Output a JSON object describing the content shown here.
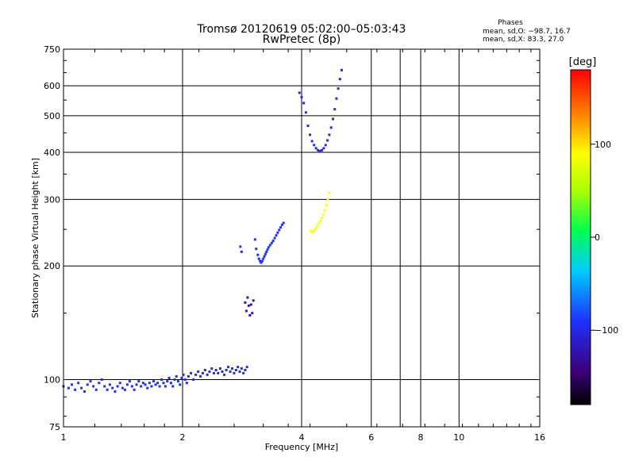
{
  "header": {
    "title_line1": "Tromsø 20120619 05:02:00–05:03:43",
    "title_line2": "RwPretec (8p)",
    "stats_heading": "Phases",
    "stats_o": "mean, sd,O: −98.7, 16.7",
    "stats_x": "mean, sd,X:  83.3, 27.0"
  },
  "colorbar": {
    "label": "[deg]",
    "ticks": [
      {
        "value": 100,
        "label": "100"
      },
      {
        "value": 0,
        "label": "0"
      },
      {
        "value": -100,
        "label": "−100"
      }
    ],
    "range": [
      -180,
      180
    ]
  },
  "chart_data": {
    "type": "scatter",
    "title": "Tromsø 20120619 05:02:00–05:03:43",
    "subtitle": "RwPretec (8p)",
    "xlabel": "Frequency [MHz]",
    "ylabel": "Stationary phase Virtual Height [km]",
    "xscale": "log",
    "yscale": "log",
    "xlim": [
      1,
      16
    ],
    "ylim": [
      75,
      750
    ],
    "x_ticks": [
      1,
      2,
      4,
      8,
      16
    ],
    "x_tick_labels": [
      "1",
      "2",
      "4",
      "8",
      "16"
    ],
    "x_minor_ticks": [
      6,
      10
    ],
    "x_minor_labels": [
      "6",
      "10"
    ],
    "x_extra_gridlines": [
      7.1
    ],
    "y_ticks": [
      75,
      100,
      200,
      300,
      400,
      500,
      600,
      750
    ],
    "y_tick_labels": [
      "75",
      "100",
      "200",
      "300",
      "400",
      "500",
      "600",
      "750"
    ],
    "grid": true,
    "color_scale": "phase in degrees, rainbow (black→purple→blue→cyan→green→yellow→orange→red)",
    "series": [
      {
        "phase_deg": -95,
        "points": [
          [
            1.0,
            96
          ],
          [
            1.03,
            95
          ],
          [
            1.05,
            97
          ],
          [
            1.07,
            94
          ],
          [
            1.09,
            98
          ],
          [
            1.11,
            95
          ],
          [
            1.13,
            93
          ],
          [
            1.15,
            97
          ],
          [
            1.17,
            99
          ],
          [
            1.19,
            96
          ],
          [
            1.21,
            94
          ],
          [
            1.23,
            98
          ],
          [
            1.25,
            100
          ],
          [
            1.27,
            96
          ],
          [
            1.29,
            94
          ],
          [
            1.31,
            97
          ],
          [
            1.33,
            95
          ],
          [
            1.35,
            93
          ],
          [
            1.37,
            96
          ],
          [
            1.39,
            98
          ],
          [
            1.41,
            95
          ],
          [
            1.43,
            94
          ],
          [
            1.45,
            97
          ],
          [
            1.47,
            99
          ],
          [
            1.49,
            96
          ],
          [
            1.51,
            94
          ],
          [
            1.53,
            97
          ],
          [
            1.55,
            99
          ],
          [
            1.57,
            96
          ],
          [
            1.59,
            98
          ],
          [
            1.61,
            97
          ],
          [
            1.63,
            95
          ],
          [
            1.65,
            98
          ],
          [
            1.67,
            96
          ],
          [
            1.69,
            99
          ],
          [
            1.71,
            97
          ],
          [
            1.73,
            98
          ],
          [
            1.75,
            96
          ],
          [
            1.77,
            100
          ],
          [
            1.79,
            98
          ],
          [
            1.81,
            96
          ],
          [
            1.83,
            99
          ],
          [
            1.85,
            101
          ],
          [
            1.87,
            98
          ],
          [
            1.89,
            96
          ],
          [
            1.91,
            100
          ],
          [
            1.93,
            102
          ],
          [
            1.95,
            99
          ],
          [
            1.97,
            97
          ],
          [
            1.99,
            101
          ],
          [
            2.01,
            103
          ],
          [
            2.03,
            100
          ],
          [
            2.05,
            98
          ],
          [
            2.07,
            102
          ],
          [
            2.1,
            104
          ],
          [
            2.13,
            100
          ],
          [
            2.16,
            103
          ],
          [
            2.19,
            105
          ],
          [
            2.22,
            102
          ],
          [
            2.25,
            104
          ],
          [
            2.28,
            106
          ],
          [
            2.31,
            103
          ],
          [
            2.34,
            105
          ],
          [
            2.37,
            107
          ],
          [
            2.4,
            104
          ],
          [
            2.43,
            106
          ],
          [
            2.46,
            104
          ],
          [
            2.49,
            107
          ],
          [
            2.52,
            105
          ],
          [
            2.55,
            103
          ],
          [
            2.58,
            106
          ],
          [
            2.61,
            108
          ],
          [
            2.64,
            105
          ],
          [
            2.67,
            107
          ],
          [
            2.7,
            104
          ],
          [
            2.73,
            106
          ],
          [
            2.76,
            108
          ],
          [
            2.79,
            105
          ],
          [
            2.82,
            107
          ],
          [
            2.85,
            104
          ],
          [
            2.88,
            106
          ],
          [
            2.91,
            108
          ]
        ]
      },
      {
        "phase_deg": -90,
        "points": [
          [
            2.8,
            225
          ],
          [
            2.82,
            218
          ],
          [
            3.05,
            235
          ],
          [
            3.07,
            222
          ],
          [
            3.1,
            214
          ],
          [
            3.12,
            209
          ],
          [
            3.14,
            206
          ],
          [
            3.16,
            204
          ],
          [
            3.18,
            206
          ],
          [
            3.2,
            209
          ],
          [
            3.22,
            212
          ],
          [
            3.24,
            215
          ],
          [
            3.26,
            218
          ],
          [
            3.28,
            221
          ],
          [
            3.3,
            224
          ],
          [
            3.33,
            227
          ],
          [
            3.36,
            230
          ],
          [
            3.39,
            233
          ],
          [
            3.42,
            237
          ],
          [
            3.45,
            241
          ],
          [
            3.48,
            245
          ],
          [
            3.51,
            249
          ],
          [
            3.54,
            253
          ],
          [
            3.57,
            257
          ],
          [
            3.6,
            260
          ]
        ]
      },
      {
        "phase_deg": -100,
        "points": [
          [
            3.95,
            575
          ],
          [
            4.0,
            560
          ],
          [
            4.05,
            540
          ],
          [
            4.1,
            510
          ],
          [
            4.15,
            470
          ],
          [
            4.2,
            445
          ],
          [
            4.25,
            428
          ],
          [
            4.3,
            418
          ],
          [
            4.35,
            410
          ],
          [
            4.4,
            405
          ],
          [
            4.45,
            403
          ],
          [
            4.5,
            405
          ],
          [
            4.55,
            410
          ],
          [
            4.6,
            418
          ],
          [
            4.65,
            430
          ],
          [
            4.7,
            445
          ],
          [
            4.75,
            465
          ],
          [
            4.8,
            490
          ],
          [
            4.85,
            520
          ],
          [
            4.9,
            555
          ],
          [
            4.95,
            590
          ],
          [
            5.0,
            625
          ],
          [
            5.05,
            660
          ]
        ]
      },
      {
        "phase_deg": 90,
        "points": [
          [
            4.22,
            248
          ],
          [
            4.26,
            246
          ],
          [
            4.3,
            248
          ],
          [
            4.34,
            251
          ],
          [
            4.38,
            255
          ],
          [
            4.42,
            259
          ],
          [
            4.46,
            263
          ],
          [
            4.5,
            268
          ],
          [
            4.54,
            274
          ],
          [
            4.58,
            281
          ],
          [
            4.62,
            290
          ],
          [
            4.66,
            300
          ],
          [
            4.7,
            312
          ]
        ]
      },
      {
        "phase_deg": -120,
        "points": [
          [
            2.88,
            160
          ],
          [
            2.9,
            152
          ],
          [
            2.92,
            165
          ],
          [
            2.94,
            157
          ],
          [
            2.96,
            148
          ],
          [
            2.98,
            158
          ],
          [
            3.0,
            150
          ],
          [
            3.02,
            162
          ]
        ]
      }
    ]
  }
}
